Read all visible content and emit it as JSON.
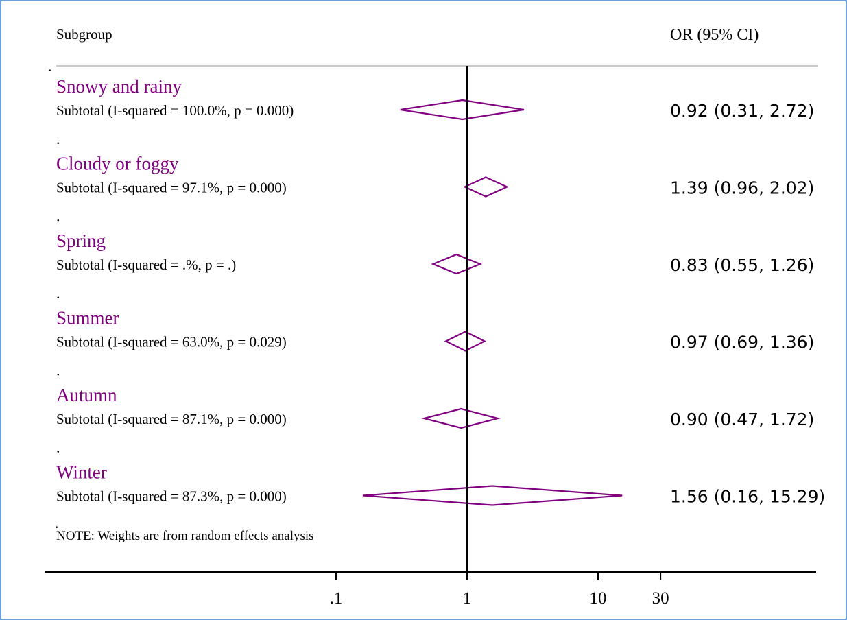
{
  "chart_data": {
    "type": "forest",
    "header": {
      "left": "Subgroup",
      "right": "OR (95% CI)"
    },
    "null_value": 1,
    "x_scale": "log",
    "x_ticks": [
      {
        "value": 0.1,
        "label": ".1"
      },
      {
        "value": 1,
        "label": "1"
      },
      {
        "value": 10,
        "label": "10"
      },
      {
        "value": 30,
        "label": "30"
      }
    ],
    "groups": [
      {
        "name": "Snowy and rainy",
        "subtotal": "Subtotal  (I-squared = 100.0%, p = 0.000)",
        "or": 0.92,
        "lower": 0.31,
        "upper": 2.72,
        "ci_text": "0.92 (0.31, 2.72)"
      },
      {
        "name": "Cloudy or foggy",
        "subtotal": "Subtotal  (I-squared = 97.1%, p = 0.000)",
        "or": 1.39,
        "lower": 0.96,
        "upper": 2.02,
        "ci_text": "1.39 (0.96, 2.02)"
      },
      {
        "name": "Spring",
        "subtotal": "Subtotal  (I-squared = .%, p = .)",
        "or": 0.83,
        "lower": 0.55,
        "upper": 1.26,
        "ci_text": "0.83 (0.55, 1.26)"
      },
      {
        "name": "Summer",
        "subtotal": "Subtotal  (I-squared = 63.0%, p = 0.029)",
        "or": 0.97,
        "lower": 0.69,
        "upper": 1.36,
        "ci_text": "0.97 (0.69, 1.36)"
      },
      {
        "name": "Autumn",
        "subtotal": "Subtotal  (I-squared = 87.1%, p = 0.000)",
        "or": 0.9,
        "lower": 0.47,
        "upper": 1.72,
        "ci_text": "0.90 (0.47, 1.72)"
      },
      {
        "name": "Winter",
        "subtotal": "Subtotal  (I-squared = 87.3%, p = 0.000)",
        "or": 1.56,
        "lower": 0.16,
        "upper": 15.29,
        "ci_text": "1.56 (0.16, 15.29)"
      }
    ],
    "separator": ".",
    "note": "NOTE: Weights are from random effects analysis",
    "colors": {
      "diamond": "#800080",
      "group_label": "#800080",
      "text": "#000000",
      "axis": "#000000",
      "header_rule": "#c8c8c8",
      "frame": "#6f9fd8"
    }
  }
}
